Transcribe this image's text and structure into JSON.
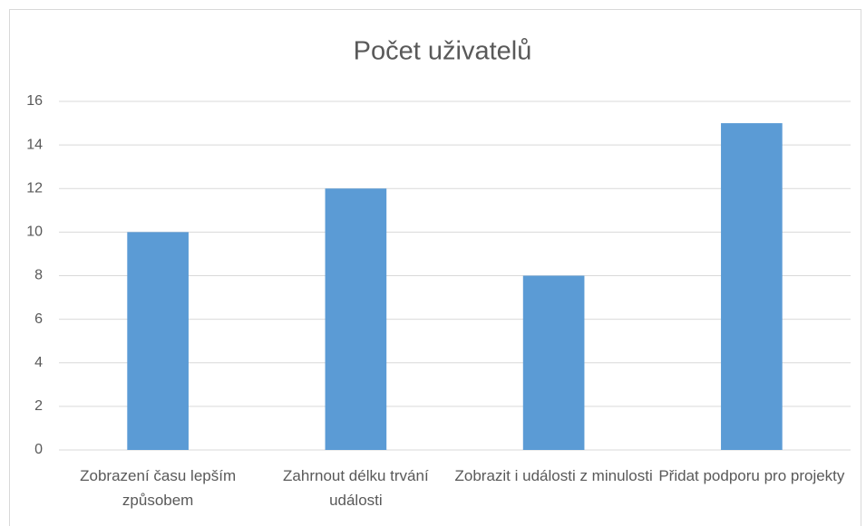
{
  "chart_data": {
    "type": "bar",
    "title": "Počet uživatelů",
    "categories": [
      "Zobrazení času lepším způsobem",
      "Zahrnout délku trvání události",
      "Zobrazit i události z minulosti",
      "Přidat podporu pro projekty"
    ],
    "values": [
      10,
      12,
      8,
      15
    ],
    "color": "#5b9bd5",
    "ylim": [
      0,
      16
    ],
    "yticks": [
      0,
      2,
      4,
      6,
      8,
      10,
      12,
      14,
      16
    ],
    "grid": true
  }
}
